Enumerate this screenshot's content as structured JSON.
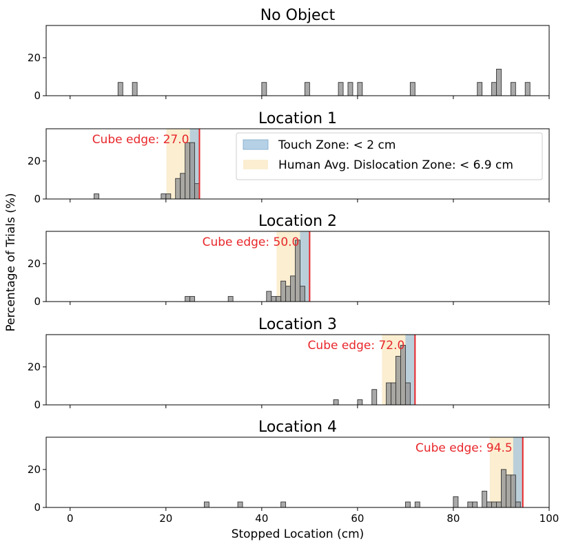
{
  "figure": {
    "xlabel": "Stopped Location (cm)",
    "ylabel": "Percentage of Trials (%)",
    "xlim": [
      -5,
      100
    ],
    "xticks": [
      "0",
      "20",
      "40",
      "60",
      "80",
      "100"
    ],
    "ylim": [
      0,
      37
    ],
    "yticks": [
      "0",
      "20"
    ],
    "colors": {
      "bar_fill": "#9a9a9a",
      "bar_edge": "#333333",
      "touch_zone": "#9ec2dd",
      "dislocation_zone": "#fbeccc",
      "cube_edge": "#e8262a"
    }
  },
  "legend": {
    "touch_label": "Touch Zone: < 2 cm",
    "human_label": "Human Avg. Dislocation Zone: < 6.9 cm",
    "placement": "upper-right of Location 1 panel"
  },
  "chart_data": [
    {
      "type": "bar",
      "title": "No Object",
      "bin_width": 1,
      "bars": [
        {
          "x": 10,
          "y": 7
        },
        {
          "x": 13,
          "y": 7
        },
        {
          "x": 40,
          "y": 7
        },
        {
          "x": 49,
          "y": 7
        },
        {
          "x": 56,
          "y": 7
        },
        {
          "x": 58,
          "y": 7
        },
        {
          "x": 60,
          "y": 7
        },
        {
          "x": 71,
          "y": 7
        },
        {
          "x": 85,
          "y": 7
        },
        {
          "x": 88,
          "y": 7
        },
        {
          "x": 89,
          "y": 14
        },
        {
          "x": 92,
          "y": 7
        },
        {
          "x": 95,
          "y": 7
        }
      ]
    },
    {
      "type": "bar",
      "title": "Location 1",
      "bin_width": 1,
      "cube_edge": 27.0,
      "cube_label": "Cube edge: 27.0",
      "touch_zone": [
        25.0,
        27.0
      ],
      "dislocation_zone": [
        20.1,
        27.0
      ],
      "bars": [
        {
          "x": 5,
          "y": 2.7
        },
        {
          "x": 19,
          "y": 2.7
        },
        {
          "x": 20,
          "y": 2.7
        },
        {
          "x": 22,
          "y": 10.8
        },
        {
          "x": 23,
          "y": 13.5
        },
        {
          "x": 24,
          "y": 29.7
        },
        {
          "x": 25,
          "y": 29.7
        },
        {
          "x": 26,
          "y": 8.1
        }
      ]
    },
    {
      "type": "bar",
      "title": "Location 2",
      "bin_width": 1,
      "cube_edge": 50.0,
      "cube_label": "Cube edge: 50.0",
      "touch_zone": [
        48.0,
        50.0
      ],
      "dislocation_zone": [
        43.1,
        50.0
      ],
      "bars": [
        {
          "x": 24,
          "y": 2.7
        },
        {
          "x": 25,
          "y": 2.7
        },
        {
          "x": 33,
          "y": 2.7
        },
        {
          "x": 41,
          "y": 5.4
        },
        {
          "x": 42,
          "y": 2.7
        },
        {
          "x": 43,
          "y": 2.7
        },
        {
          "x": 44,
          "y": 10.8
        },
        {
          "x": 45,
          "y": 8.1
        },
        {
          "x": 46,
          "y": 13.5
        },
        {
          "x": 47,
          "y": 32.4
        },
        {
          "x": 48,
          "y": 8.1
        }
      ]
    },
    {
      "type": "bar",
      "title": "Location 3",
      "bin_width": 1,
      "cube_edge": 72.0,
      "cube_label": "Cube edge: 72.0",
      "touch_zone": [
        70.0,
        72.0
      ],
      "dislocation_zone": [
        65.1,
        72.0
      ],
      "bars": [
        {
          "x": 55,
          "y": 2.7
        },
        {
          "x": 60,
          "y": 2.7
        },
        {
          "x": 63,
          "y": 8.1
        },
        {
          "x": 66,
          "y": 11.6
        },
        {
          "x": 67,
          "y": 11.6
        },
        {
          "x": 68,
          "y": 25.6
        },
        {
          "x": 69,
          "y": 31.4
        },
        {
          "x": 70,
          "y": 11.6
        }
      ]
    },
    {
      "type": "bar",
      "title": "Location 4",
      "bin_width": 1,
      "cube_edge": 94.5,
      "cube_label": "Cube edge: 94.5",
      "touch_zone": [
        92.5,
        94.5
      ],
      "dislocation_zone": [
        87.6,
        94.5
      ],
      "bars": [
        {
          "x": 28,
          "y": 2.9
        },
        {
          "x": 35,
          "y": 2.9
        },
        {
          "x": 44,
          "y": 2.9
        },
        {
          "x": 70,
          "y": 2.9
        },
        {
          "x": 72,
          "y": 2.9
        },
        {
          "x": 80,
          "y": 5.7
        },
        {
          "x": 83,
          "y": 2.9
        },
        {
          "x": 84,
          "y": 2.9
        },
        {
          "x": 86,
          "y": 8.6
        },
        {
          "x": 87,
          "y": 2.9
        },
        {
          "x": 88,
          "y": 2.9
        },
        {
          "x": 89,
          "y": 2.9
        },
        {
          "x": 90,
          "y": 20.0
        },
        {
          "x": 91,
          "y": 17.1
        },
        {
          "x": 92,
          "y": 17.1
        },
        {
          "x": 93,
          "y": 2.9
        }
      ]
    }
  ]
}
